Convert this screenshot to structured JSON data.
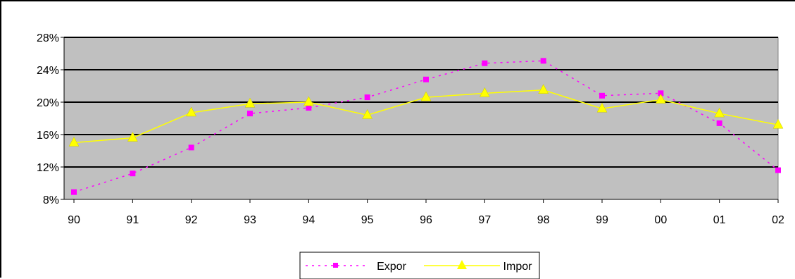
{
  "chart_data": {
    "type": "line",
    "title": "",
    "xlabel": "",
    "ylabel": "",
    "categories": [
      "90",
      "91",
      "92",
      "93",
      "94",
      "95",
      "96",
      "97",
      "98",
      "99",
      "00",
      "01",
      "02"
    ],
    "ylim": [
      8,
      28
    ],
    "yticks": [
      "8%",
      "12%",
      "16%",
      "20%",
      "24%",
      "28%"
    ],
    "grid": "horizontal",
    "legend_position": "bottom",
    "plot_background": "#c0c0c0",
    "series": [
      {
        "name": "Expor",
        "color": "#ff00ff",
        "line_style": "dotted",
        "marker": "square",
        "values": [
          8.9,
          11.2,
          14.4,
          18.6,
          19.3,
          20.6,
          22.8,
          24.8,
          25.1,
          20.8,
          21.1,
          17.4,
          11.6
        ]
      },
      {
        "name": "Impor",
        "color": "#ffff00",
        "line_style": "solid",
        "marker": "triangle",
        "values": [
          15.0,
          15.6,
          18.7,
          19.8,
          20.0,
          18.4,
          20.6,
          21.1,
          21.5,
          19.2,
          20.3,
          18.6,
          17.2
        ]
      }
    ]
  }
}
